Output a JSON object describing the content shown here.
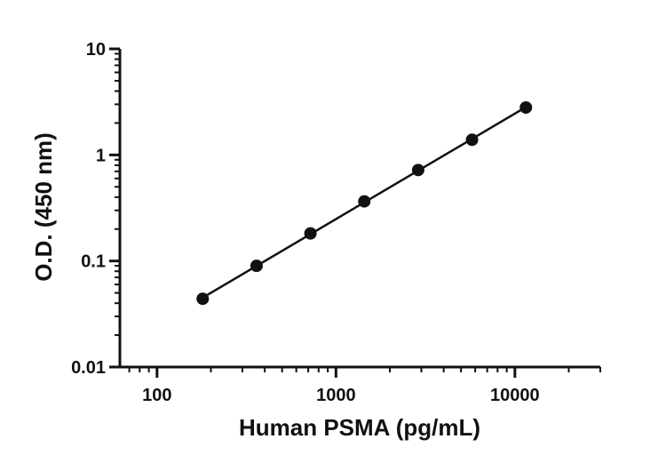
{
  "chart_data": {
    "type": "scatter",
    "title": "",
    "xlabel": "Human PSMA (pg/mL)",
    "ylabel": "O.D. (450 nm)",
    "x_scale": "log",
    "y_scale": "log",
    "xlim": [
      62,
      30000
    ],
    "ylim": [
      0.01,
      10
    ],
    "x_ticks": [
      "100",
      "1000",
      "10000"
    ],
    "y_ticks": [
      "0.01",
      "0.1",
      "1",
      "10"
    ],
    "grid": false,
    "legend": "none",
    "marker_color": "#111111",
    "line_color": "#111111",
    "series": [
      {
        "x": [
          180,
          360,
          720,
          1440,
          2880,
          5760,
          11520
        ],
        "y": [
          0.044,
          0.09,
          0.182,
          0.365,
          0.72,
          1.39,
          2.8
        ],
        "fit_line": true
      }
    ]
  }
}
